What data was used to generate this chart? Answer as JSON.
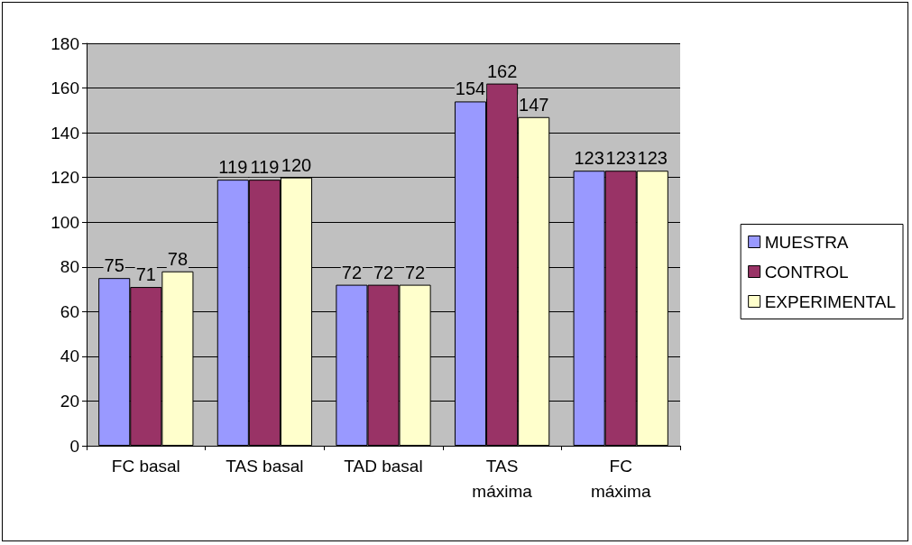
{
  "chart_data": {
    "type": "bar",
    "categories": [
      "FC basal",
      "TAS basal",
      "TAD basal",
      "TAS\nmáxima",
      "FC\nmáxima"
    ],
    "series": [
      {
        "name": "MUESTRA",
        "color": "#9999ff",
        "values": [
          75,
          119,
          72,
          154,
          123
        ]
      },
      {
        "name": "CONTROL",
        "color": "#993366",
        "values": [
          71,
          119,
          72,
          162,
          123
        ]
      },
      {
        "name": "EXPERIMENTAL",
        "color": "#ffffcc",
        "values": [
          78,
          120,
          72,
          147,
          123
        ]
      }
    ],
    "ylim": [
      0,
      180
    ],
    "yticks": [
      0,
      20,
      40,
      60,
      80,
      100,
      120,
      140,
      160,
      180
    ],
    "grid": "y",
    "legend": "right",
    "data_labels": true
  }
}
